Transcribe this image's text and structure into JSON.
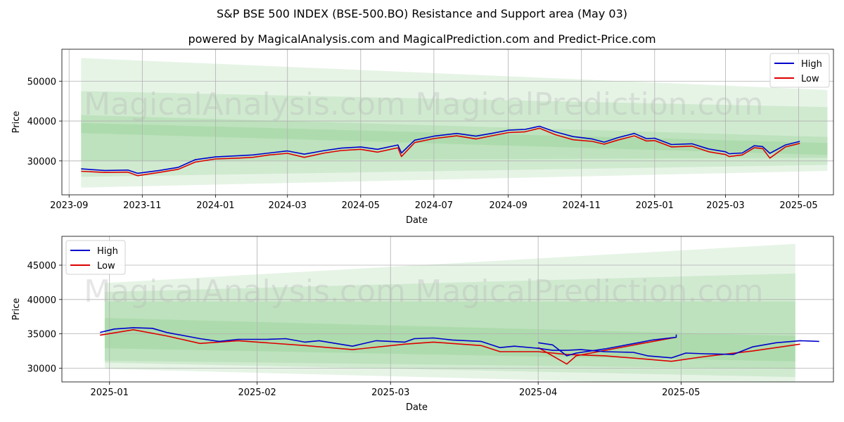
{
  "header": {
    "title": "S&P BSE 500 INDEX (BSE-500.BO) Resistance and Support area (May 03)",
    "subtitle": "powered by MagicalAnalysis.com and MagicalPrediction.com and Predict-Price.com"
  },
  "watermark": {
    "left": "MagicalAnalysis.com",
    "right": "MagicalPrediction.com"
  },
  "colors": {
    "high": "#0000cc",
    "low": "#dd0000",
    "band": "#4caf50",
    "grid": "#b0b0b0"
  },
  "chart_data": [
    {
      "type": "line",
      "xlabel": "Date",
      "ylabel": "Price",
      "xlim": [
        "2023-08-26",
        "2025-05-30"
      ],
      "ylim": [
        21500,
        58000
      ],
      "x_ticks": [
        {
          "date": "2023-09-01",
          "label": "2023-09"
        },
        {
          "date": "2023-11-01",
          "label": "2023-11"
        },
        {
          "date": "2024-01-01",
          "label": "2024-01"
        },
        {
          "date": "2024-03-01",
          "label": "2024-03"
        },
        {
          "date": "2024-05-01",
          "label": "2024-05"
        },
        {
          "date": "2024-07-01",
          "label": "2024-07"
        },
        {
          "date": "2024-09-01",
          "label": "2024-09"
        },
        {
          "date": "2024-11-01",
          "label": "2024-11"
        },
        {
          "date": "2025-01-01",
          "label": "2025-01"
        },
        {
          "date": "2025-03-01",
          "label": "2025-03"
        },
        {
          "date": "2025-05-01",
          "label": "2025-05"
        }
      ],
      "y_ticks": [
        30000,
        40000,
        50000
      ],
      "legend": {
        "position": "top-right",
        "entries": [
          "High",
          "Low"
        ]
      },
      "series": [
        {
          "name": "High",
          "points": [
            [
              "2023-09-11",
              28000
            ],
            [
              "2023-10-01",
              27600
            ],
            [
              "2023-10-20",
              27700
            ],
            [
              "2023-10-28",
              26900
            ],
            [
              "2023-11-15",
              27600
            ],
            [
              "2023-12-01",
              28400
            ],
            [
              "2023-12-15",
              30300
            ],
            [
              "2024-01-01",
              31000
            ],
            [
              "2024-01-20",
              31300
            ],
            [
              "2024-02-01",
              31500
            ],
            [
              "2024-02-15",
              32000
            ],
            [
              "2024-03-01",
              32500
            ],
            [
              "2024-03-15",
              31700
            ],
            [
              "2024-04-01",
              32600
            ],
            [
              "2024-04-15",
              33200
            ],
            [
              "2024-05-01",
              33500
            ],
            [
              "2024-05-15",
              32900
            ],
            [
              "2024-06-01",
              34000
            ],
            [
              "2024-06-04",
              32000
            ],
            [
              "2024-06-15",
              35200
            ],
            [
              "2024-07-01",
              36200
            ],
            [
              "2024-07-20",
              36900
            ],
            [
              "2024-08-05",
              36200
            ],
            [
              "2024-08-20",
              37000
            ],
            [
              "2024-09-01",
              37700
            ],
            [
              "2024-09-15",
              37900
            ],
            [
              "2024-09-27",
              38700
            ],
            [
              "2024-10-10",
              37300
            ],
            [
              "2024-10-25",
              36100
            ],
            [
              "2024-11-10",
              35500
            ],
            [
              "2024-11-20",
              34700
            ],
            [
              "2024-12-01",
              35800
            ],
            [
              "2024-12-15",
              36900
            ],
            [
              "2024-12-25",
              35600
            ],
            [
              "2025-01-01",
              35700
            ],
            [
              "2025-01-15",
              34100
            ],
            [
              "2025-02-01",
              34300
            ],
            [
              "2025-02-15",
              33000
            ],
            [
              "2025-03-01",
              32300
            ],
            [
              "2025-03-04",
              31800
            ],
            [
              "2025-03-15",
              32000
            ],
            [
              "2025-03-25",
              33800
            ],
            [
              "2025-04-01",
              33600
            ],
            [
              "2025-04-07",
              31900
            ],
            [
              "2025-04-20",
              34000
            ],
            [
              "2025-05-02",
              34900
            ]
          ]
        },
        {
          "name": "Low",
          "points": [
            [
              "2023-09-11",
              27400
            ],
            [
              "2023-10-01",
              27100
            ],
            [
              "2023-10-20",
              27200
            ],
            [
              "2023-10-28",
              26300
            ],
            [
              "2023-11-15",
              27100
            ],
            [
              "2023-12-01",
              27900
            ],
            [
              "2023-12-15",
              29700
            ],
            [
              "2024-01-01",
              30500
            ],
            [
              "2024-01-20",
              30700
            ],
            [
              "2024-02-01",
              30900
            ],
            [
              "2024-02-15",
              31500
            ],
            [
              "2024-03-01",
              31900
            ],
            [
              "2024-03-15",
              30900
            ],
            [
              "2024-04-01",
              32000
            ],
            [
              "2024-04-15",
              32600
            ],
            [
              "2024-05-01",
              32900
            ],
            [
              "2024-05-15",
              32200
            ],
            [
              "2024-06-01",
              33300
            ],
            [
              "2024-06-04",
              31100
            ],
            [
              "2024-06-15",
              34600
            ],
            [
              "2024-07-01",
              35600
            ],
            [
              "2024-07-20",
              36300
            ],
            [
              "2024-08-05",
              35500
            ],
            [
              "2024-08-20",
              36400
            ],
            [
              "2024-09-01",
              37100
            ],
            [
              "2024-09-15",
              37300
            ],
            [
              "2024-09-27",
              38200
            ],
            [
              "2024-10-10",
              36600
            ],
            [
              "2024-10-25",
              35300
            ],
            [
              "2024-11-10",
              34900
            ],
            [
              "2024-11-20",
              34200
            ],
            [
              "2024-12-01",
              35200
            ],
            [
              "2024-12-15",
              36300
            ],
            [
              "2024-12-25",
              35000
            ],
            [
              "2025-01-01",
              35100
            ],
            [
              "2025-01-15",
              33500
            ],
            [
              "2025-02-01",
              33700
            ],
            [
              "2025-02-15",
              32300
            ],
            [
              "2025-03-01",
              31600
            ],
            [
              "2025-03-04",
              31100
            ],
            [
              "2025-03-15",
              31500
            ],
            [
              "2025-03-25",
              33300
            ],
            [
              "2025-04-01",
              33100
            ],
            [
              "2025-04-07",
              30700
            ],
            [
              "2025-04-20",
              33500
            ],
            [
              "2025-05-02",
              34400
            ]
          ]
        }
      ],
      "bands": [
        {
          "start": "2023-09-11",
          "end": "2025-05-25",
          "upper": [
            55800,
            47800
          ],
          "lower": [
            23300,
            27500
          ]
        },
        {
          "start": "2023-09-11",
          "end": "2025-05-25",
          "upper": [
            47500,
            43500
          ],
          "lower": [
            26000,
            29000
          ]
        },
        {
          "start": "2023-09-11",
          "end": "2025-05-25",
          "upper": [
            41500,
            36000
          ],
          "lower": [
            30000,
            30800
          ]
        },
        {
          "start": "2023-09-11",
          "end": "2025-05-25",
          "upper": [
            39500,
            34500
          ],
          "lower": [
            37000,
            31500
          ]
        }
      ]
    },
    {
      "type": "line",
      "xlabel": "Date",
      "ylabel": "Price",
      "xlim": [
        "2024-12-22",
        "2025-06-02"
      ],
      "ylim": [
        28000,
        49200
      ],
      "x_ticks": [
        {
          "date": "2025-01-01",
          "label": "2025-01"
        },
        {
          "date": "2025-02-01",
          "label": "2025-02"
        },
        {
          "date": "2025-03-01",
          "label": "2025-03"
        },
        {
          "date": "2025-04-01",
          "label": "2025-04"
        },
        {
          "date": "2025-05-01",
          "label": "2025-05"
        }
      ],
      "y_ticks": [
        30000,
        35000,
        40000,
        45000
      ],
      "legend": {
        "position": "top-left",
        "entries": [
          "High",
          "Low"
        ]
      },
      "series": [
        {
          "name": "High",
          "points": [
            [
              "2024-12-30",
              35200
            ],
            [
              "2025-01-02",
              35700
            ],
            [
              "2025-01-06",
              35900
            ],
            [
              "2025-01-10",
              35800
            ],
            [
              "2025-01-13",
              35200
            ],
            [
              "2025-01-20",
              34300
            ],
            [
              "2025-01-24",
              33900
            ],
            [
              "2025-01-28",
              34200
            ],
            [
              "2025-02-03",
              34200
            ],
            [
              "2025-02-07",
              34300
            ],
            [
              "2025-02-11",
              33800
            ],
            [
              "2025-02-14",
              34000
            ],
            [
              "2025-02-21",
              33200
            ],
            [
              "2025-02-26",
              34000
            ],
            [
              "2025-03-04",
              33800
            ],
            [
              "2025-03-06",
              34300
            ],
            [
              "2025-03-10",
              34400
            ],
            [
              "2025-03-14",
              34100
            ],
            [
              "2025-03-20",
              33900
            ],
            [
              "2025-03-24",
              33000
            ],
            [
              "2025-03-27",
              33200
            ],
            [
              "2025-04-01",
              32900
            ],
            [
              "2025-04-04",
              32600
            ],
            [
              "2025-04-07",
              32600
            ],
            [
              "2025-04-10",
              32700
            ],
            [
              "2025-04-15",
              32400
            ],
            [
              "2025-04-21",
              32300
            ],
            [
              "2025-04-24",
              31800
            ],
            [
              "2025-04-29",
              31500
            ],
            [
              "2025-05-02",
              32200
            ],
            [
              "2025-05-06",
              32100
            ],
            [
              "2025-05-12",
              32000
            ],
            [
              "2025-05-16",
              33100
            ],
            [
              "2025-05-21",
              33700
            ],
            [
              "2025-05-26",
              34000
            ],
            [
              "2025-05-30",
              33900
            ],
            [
              "2025-04-01",
              33700
            ],
            [
              "2025-04-04",
              33400
            ],
            [
              "2025-04-07",
              31800
            ],
            [
              "2025-04-09",
              32200
            ],
            [
              "2025-04-15",
              32800
            ],
            [
              "2025-04-22",
              33700
            ],
            [
              "2025-04-25",
              34100
            ],
            [
              "2025-04-30",
              34500
            ],
            [
              "2025-04-30",
              34900
            ]
          ]
        },
        {
          "name": "Low",
          "points": [
            [
              "2024-12-30",
              34800
            ],
            [
              "2025-01-06",
              35600
            ],
            [
              "2025-01-13",
              34700
            ],
            [
              "2025-01-20",
              33600
            ],
            [
              "2025-01-28",
              34000
            ],
            [
              "2025-02-11",
              33300
            ],
            [
              "2025-02-21",
              32700
            ],
            [
              "2025-03-04",
              33500
            ],
            [
              "2025-03-10",
              33800
            ],
            [
              "2025-03-20",
              33300
            ],
            [
              "2025-03-24",
              32400
            ],
            [
              "2025-04-01",
              32400
            ],
            [
              "2025-04-07",
              32000
            ],
            [
              "2025-04-15",
              31800
            ],
            [
              "2025-04-24",
              31300
            ],
            [
              "2025-04-29",
              31000
            ],
            [
              "2025-05-06",
              31700
            ],
            [
              "2025-05-16",
              32500
            ],
            [
              "2025-05-26",
              33500
            ],
            [
              "2025-04-01",
              33000
            ],
            [
              "2025-04-07",
              30600
            ],
            [
              "2025-04-09",
              31800
            ],
            [
              "2025-04-22",
              33500
            ],
            [
              "2025-04-30",
              34500
            ]
          ]
        }
      ],
      "bands": [
        {
          "start": "2024-12-31",
          "end": "2025-05-25",
          "upper": [
            42400,
            48100
          ],
          "lower": [
            29900,
            27300
          ]
        },
        {
          "start": "2024-12-31",
          "end": "2025-05-25",
          "upper": [
            41100,
            43800
          ],
          "lower": [
            30800,
            28700
          ]
        },
        {
          "start": "2024-12-31",
          "end": "2025-05-25",
          "upper": [
            39700,
            39700
          ],
          "lower": [
            31100,
            29900
          ]
        },
        {
          "start": "2024-12-31",
          "end": "2025-05-25",
          "upper": [
            37300,
            34700
          ],
          "lower": [
            32900,
            31000
          ]
        }
      ]
    }
  ]
}
